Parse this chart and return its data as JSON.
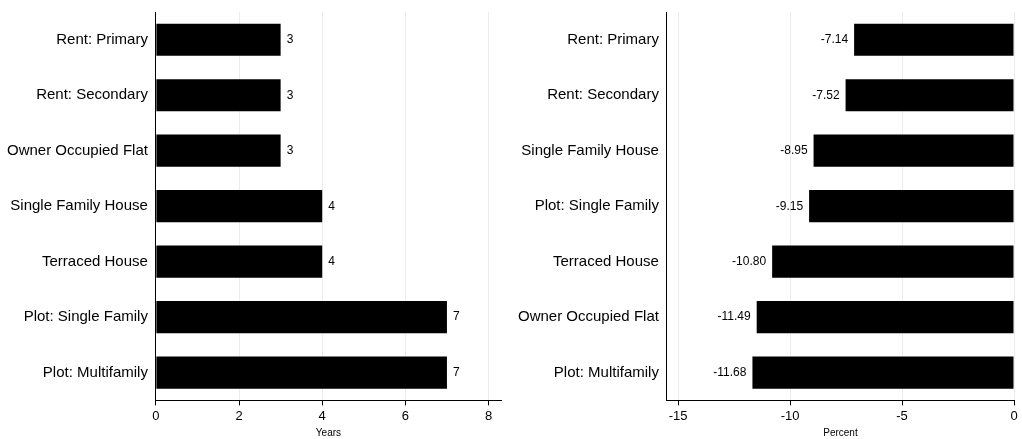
{
  "chart_data": [
    {
      "type": "bar",
      "orientation": "horizontal",
      "xlabel": "Years",
      "categories": [
        "Rent: Primary",
        "Rent: Secondary",
        "Owner Occupied Flat",
        "Single Family House",
        "Terraced House",
        "Plot: Single Family",
        "Plot: Multifamily"
      ],
      "series": [
        {
          "color": "#000000",
          "values": [
            3,
            3,
            3,
            4,
            4,
            7,
            7
          ]
        }
      ],
      "xlim": [
        0,
        8.3
      ],
      "xticks": [
        0,
        2,
        4,
        6,
        8
      ],
      "grid": "x",
      "data_labels": true,
      "legend": false
    },
    {
      "type": "bar",
      "orientation": "horizontal",
      "xlabel": "Percent",
      "categories": [
        "Rent: Primary",
        "Rent: Secondary",
        "Single Family House",
        "Plot: Single Family",
        "Terraced House",
        "Owner Occupied Flat",
        "Plot: Multifamily"
      ],
      "series": [
        {
          "color": "#000000",
          "values": [
            -7.14,
            -7.52,
            -8.95,
            -9.15,
            -10.8,
            -11.49,
            -11.68
          ]
        }
      ],
      "value_labels": [
        "-7.14",
        "-7.52",
        "-8.95",
        "-9.15",
        "-10.80",
        "-11.49",
        "-11.68"
      ],
      "xlim": [
        -15.5,
        0
      ],
      "xticks": [
        -15,
        -10,
        -5,
        0
      ],
      "grid": "x",
      "legend": false
    }
  ]
}
